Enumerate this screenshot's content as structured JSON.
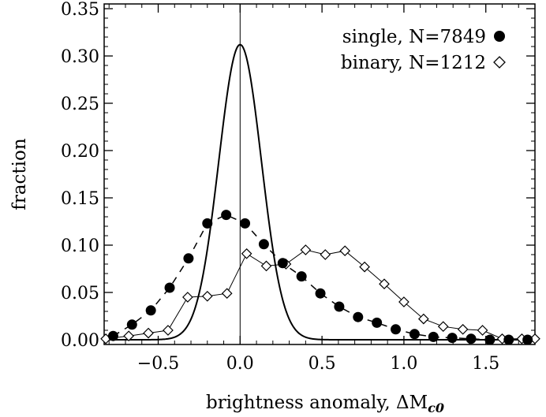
{
  "chart_data": {
    "type": "line",
    "xlabel": "brightness anomaly, ΔM",
    "xlabel_subscript": "c0",
    "ylabel": "fraction",
    "xlim": [
      -0.83,
      1.8
    ],
    "ylim": [
      -0.005,
      0.355
    ],
    "xticks": [
      -0.5,
      0.0,
      0.5,
      1.0,
      1.5
    ],
    "xtick_labels": [
      "−0.5",
      "0.0",
      "0.5",
      "1.0",
      "1.5"
    ],
    "yticks": [
      0.0,
      0.05,
      0.1,
      0.15,
      0.2,
      0.25,
      0.3,
      0.35
    ],
    "ytick_labels": [
      "0.00",
      "0.05",
      "0.10",
      "0.15",
      "0.20",
      "0.25",
      "0.30",
      "0.35"
    ],
    "legend_position": "top-right",
    "reference_line_x": 0.0,
    "gaussian": {
      "amplitude": 0.312,
      "mean": 0.0,
      "sigma": 0.13
    },
    "series": [
      {
        "name": "single, N=7849",
        "marker": "filled-circle",
        "line": "dashed",
        "x": [
          -0.775,
          -0.66,
          -0.545,
          -0.43,
          -0.315,
          -0.2,
          -0.085,
          0.03,
          0.145,
          0.26,
          0.375,
          0.49,
          0.605,
          0.72,
          0.835,
          0.95,
          1.065,
          1.18,
          1.295,
          1.41,
          1.525,
          1.64,
          1.755
        ],
        "values": [
          0.004,
          0.016,
          0.031,
          0.055,
          0.086,
          0.123,
          0.132,
          0.123,
          0.101,
          0.081,
          0.067,
          0.049,
          0.035,
          0.024,
          0.018,
          0.011,
          0.006,
          0.003,
          0.002,
          0.001,
          0.0,
          0.0,
          0.0
        ]
      },
      {
        "name": "binary, N=1212",
        "marker": "open-diamond",
        "line": "solid-thin",
        "x": [
          -0.82,
          -0.68,
          -0.56,
          -0.44,
          -0.32,
          -0.2,
          -0.08,
          0.04,
          0.16,
          0.28,
          0.4,
          0.52,
          0.64,
          0.76,
          0.88,
          1.0,
          1.12,
          1.24,
          1.36,
          1.48,
          1.6,
          1.72,
          1.8
        ],
        "values": [
          0.001,
          0.004,
          0.007,
          0.01,
          0.045,
          0.046,
          0.049,
          0.091,
          0.078,
          0.08,
          0.095,
          0.09,
          0.094,
          0.077,
          0.059,
          0.04,
          0.022,
          0.014,
          0.011,
          0.01,
          0.001,
          0.001,
          0.001
        ]
      }
    ]
  }
}
